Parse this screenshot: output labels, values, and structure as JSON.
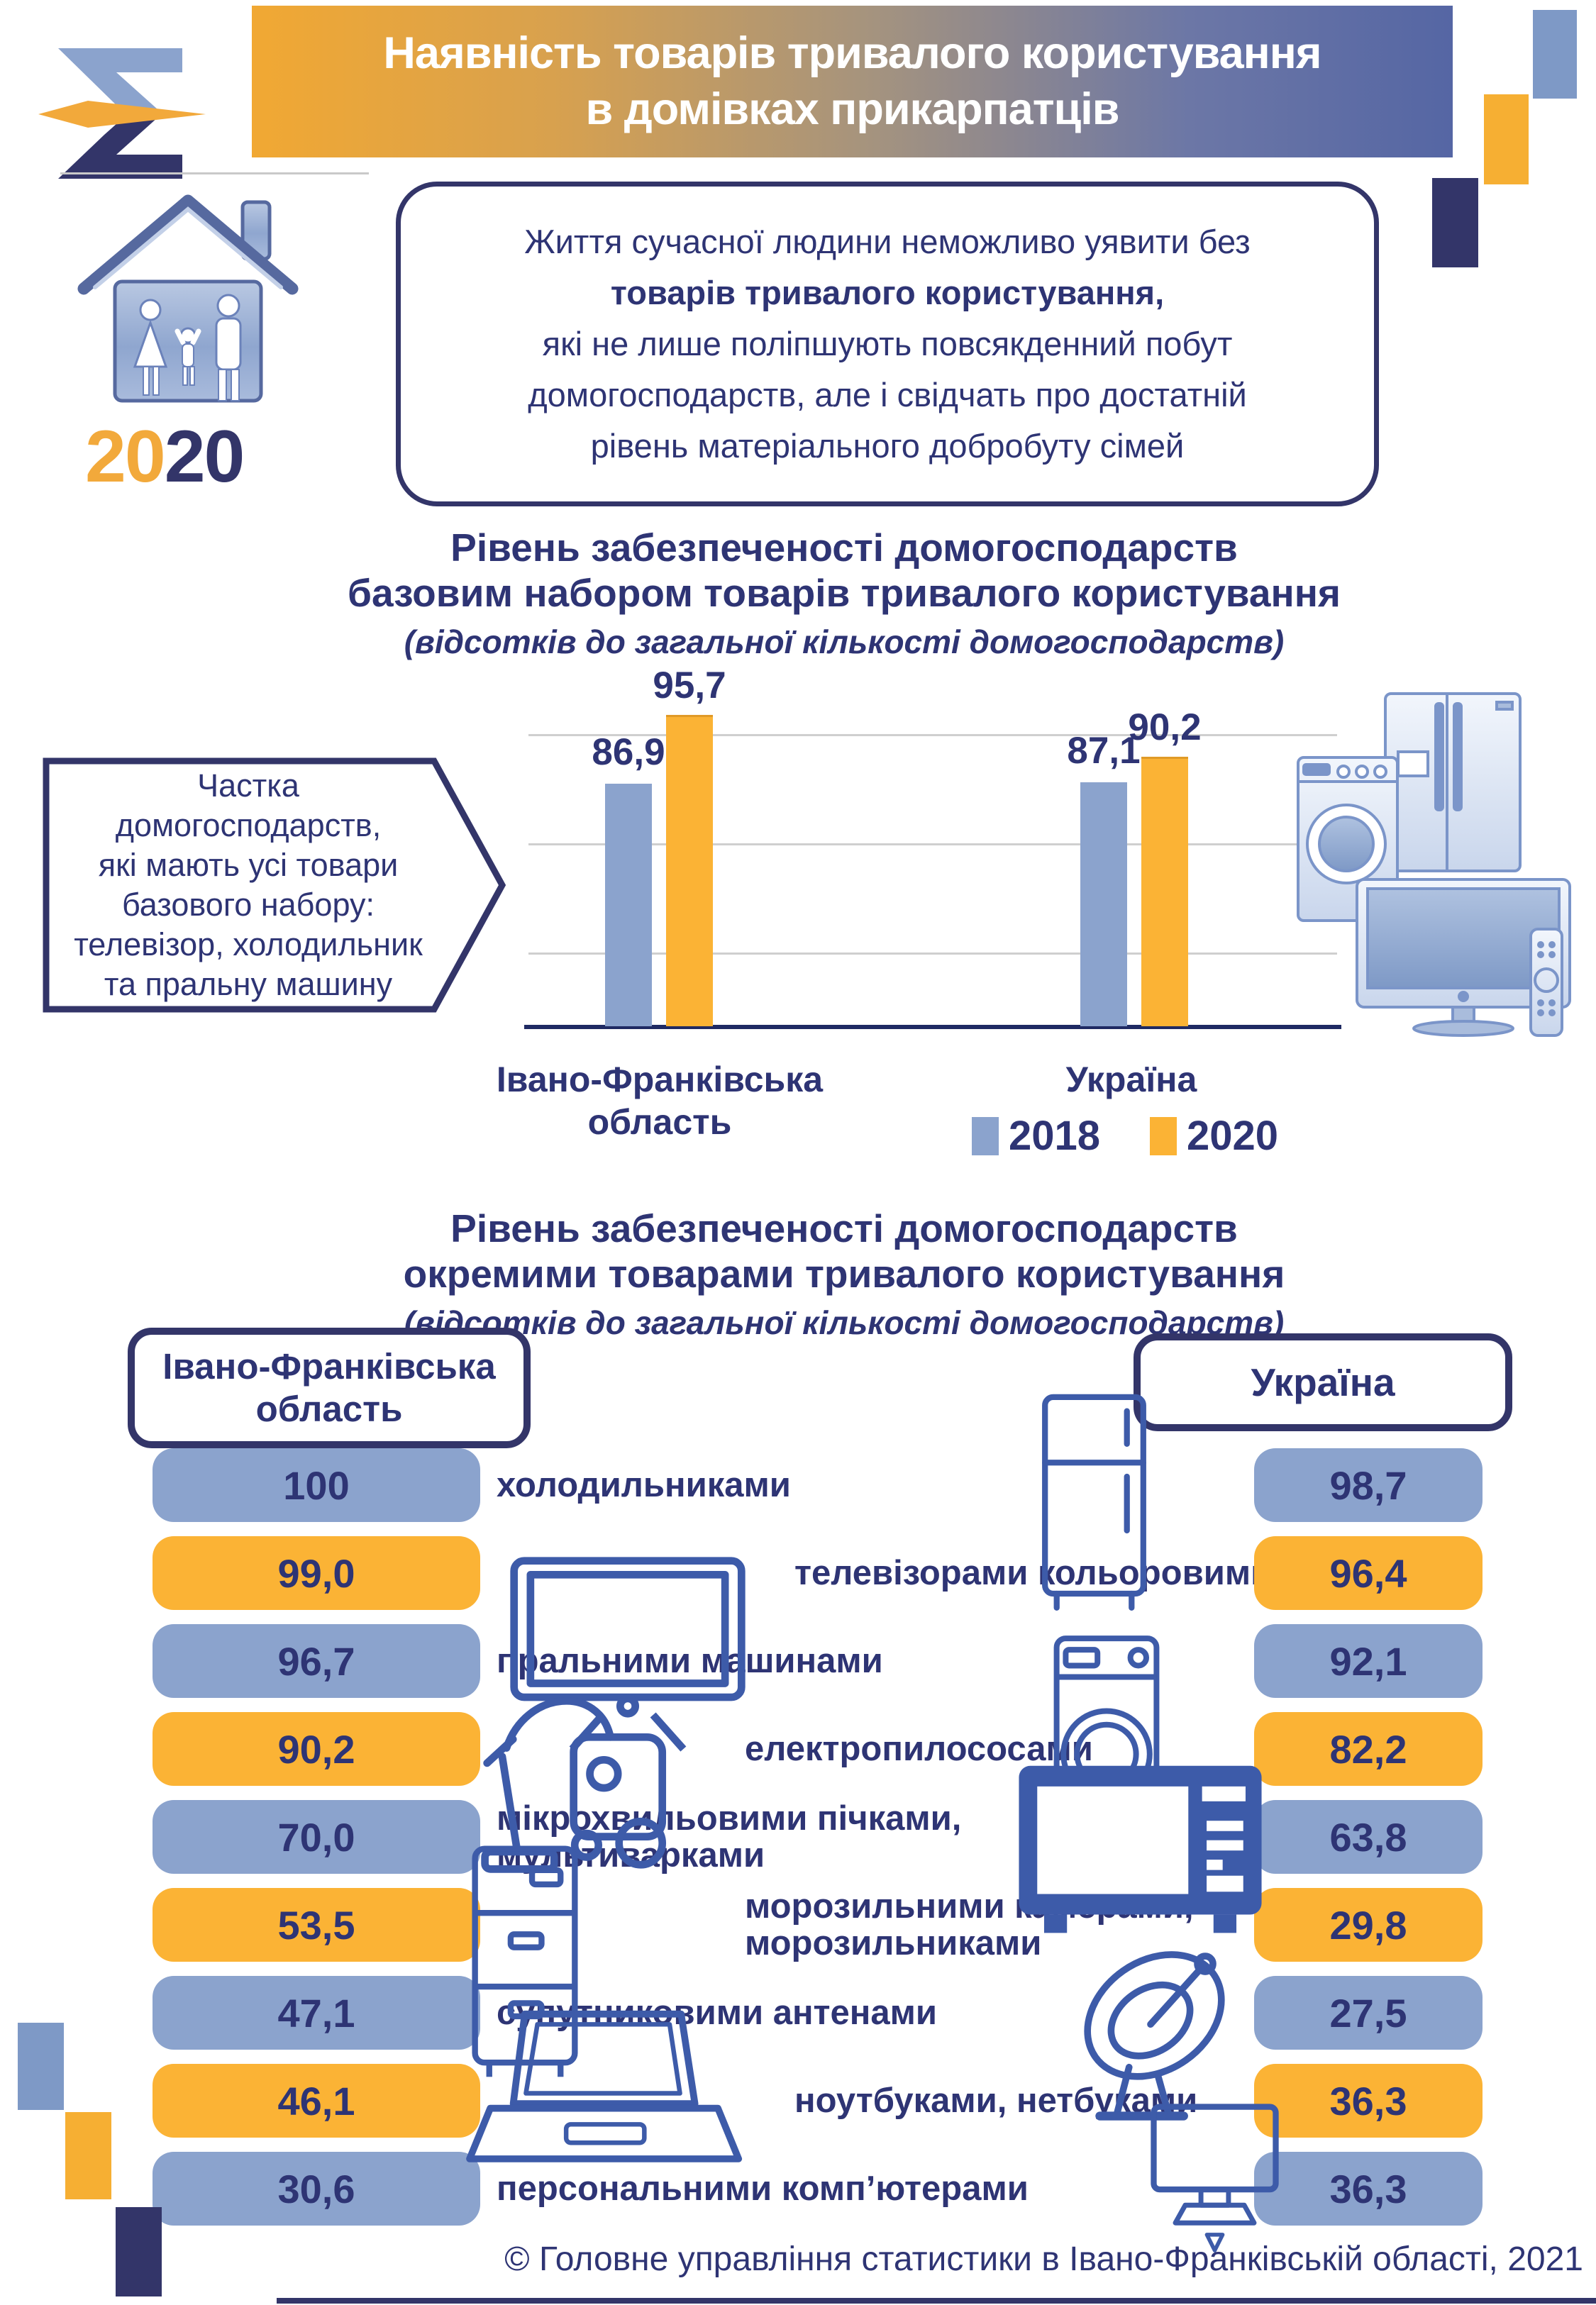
{
  "header": {
    "title_line1": "Наявність товарів тривалого користування",
    "title_line2": "в домівках прикарпатців"
  },
  "year_badge": {
    "first": "20",
    "second": "20"
  },
  "intro": {
    "line1": "Життя сучасної людини неможливо уявити без",
    "line2_bold": "товарів тривалого користування,",
    "line3": "які не лише поліпшують повсякденний побут",
    "line4": "домогосподарств, але і свідчать про достатній",
    "line5": "рівень матеріального добробуту сімей"
  },
  "chart1": {
    "title_line1": "Рівень забезпеченості домогосподарств",
    "title_line2": "базовим набором товарів тривалого користування",
    "subtitle": "(відсотків до загальної кількості домогосподарств)",
    "category1_line1": "Івано-Франківська",
    "category1_line2": "область",
    "category2": "Україна",
    "legend": [
      {
        "label": "2018",
        "color": "#8BA3CD"
      },
      {
        "label": "2020",
        "color": "#FBB335"
      }
    ],
    "bar_labels": [
      [
        "86,9",
        "95,7"
      ],
      [
        "87,1",
        "90,2"
      ]
    ]
  },
  "callout": {
    "lines": [
      "Частка",
      "домогосподарств,",
      "які мають усі товари",
      "базового набору:",
      "телевізор, холодильник",
      "та пральну машину"
    ]
  },
  "section2": {
    "title_line1": "Рівень забезпеченості домогосподарств",
    "title_line2": "окремими товарами тривалого користування",
    "subtitle": "(відсотків до загальної кількості домогосподарств)",
    "region_header_line1": "Івано-Франківська",
    "region_header_line2": "область",
    "country_header": "Україна",
    "rows": [
      {
        "region_value": "100",
        "label_lines": [
          "холодильниками"
        ],
        "country_value": "98,7",
        "color": "blue",
        "icon": "fridge-icon"
      },
      {
        "region_value": "99,0",
        "label_lines": [
          "телевізорами кольоровими"
        ],
        "country_value": "96,4",
        "color": "orange",
        "icon": "tv-icon"
      },
      {
        "region_value": "96,7",
        "label_lines": [
          "пральними машинами"
        ],
        "country_value": "92,1",
        "color": "blue",
        "icon": "washing-machine-icon"
      },
      {
        "region_value": "90,2",
        "label_lines": [
          "електропилососами"
        ],
        "country_value": "82,2",
        "color": "orange",
        "icon": "vacuum-cleaner-icon"
      },
      {
        "region_value": "70,0",
        "label_lines": [
          "мікрохвильовими пічками,",
          "мультиварками"
        ],
        "country_value": "63,8",
        "color": "blue",
        "icon": "microwave-icon"
      },
      {
        "region_value": "53,5",
        "label_lines": [
          "морозильними камерами,",
          "морозильниками"
        ],
        "country_value": "29,8",
        "color": "orange",
        "icon": "freezer-icon"
      },
      {
        "region_value": "47,1",
        "label_lines": [
          "супутниковими антенами"
        ],
        "country_value": "27,5",
        "color": "blue",
        "icon": "satellite-dish-icon"
      },
      {
        "region_value": "46,1",
        "label_lines": [
          "ноутбуками, нетбуками"
        ],
        "country_value": "36,3",
        "color": "orange",
        "icon": "laptop-icon"
      },
      {
        "region_value": "30,6",
        "label_lines": [
          "персональними комп’ютерами"
        ],
        "country_value": "36,3",
        "color": "blue",
        "icon": "desktop-computer-icon"
      }
    ]
  },
  "footer": {
    "copyright": "© Головне управління статистики в Івано-Франківській області, 2021"
  },
  "colors": {
    "navy": "#2E3474",
    "dark_navy_accent": "#333569",
    "blue": "#8BA3CD",
    "orange": "#FBB335",
    "banner_gradient_left": "#F1A833",
    "banner_gradient_right": "#5566A4",
    "gridline": "#CFCFCF"
  },
  "chart_data": [
    {
      "type": "bar",
      "title": "Рівень забезпеченості домогосподарств базовим набором товарів тривалого користування",
      "subtitle": "(відсотків до загальної кількості домогосподарств)",
      "categories": [
        "Івано-Франківська область",
        "Україна"
      ],
      "series": [
        {
          "name": "2018",
          "color": "#8BA3CD",
          "values": [
            86.9,
            87.1
          ]
        },
        {
          "name": "2020",
          "color": "#FBB335",
          "values": [
            95.7,
            90.2
          ]
        }
      ],
      "ylim": [
        55,
        100
      ],
      "grid": true,
      "legend_position": "bottom"
    },
    {
      "type": "table",
      "title": "Рівень забезпеченості домогосподарств окремими товарами тривалого користування",
      "subtitle": "(відсотків до загальної кількості домогосподарств)",
      "columns": [
        "Івано-Франківська область",
        "товар",
        "Україна"
      ],
      "rows": [
        [
          100.0,
          "холодильниками",
          98.7
        ],
        [
          99.0,
          "телевізорами кольоровими",
          96.4
        ],
        [
          96.7,
          "пральними машинами",
          92.1
        ],
        [
          90.2,
          "електропилососами",
          82.2
        ],
        [
          70.0,
          "мікрохвильовими пічками, мультиварками",
          63.8
        ],
        [
          53.5,
          "морозильними камерами, морозильниками",
          29.8
        ],
        [
          47.1,
          "супутниковими антенами",
          27.5
        ],
        [
          46.1,
          "ноутбуками, нетбуками",
          36.3
        ],
        [
          30.6,
          "персональними комп’ютерами",
          36.3
        ]
      ]
    }
  ]
}
